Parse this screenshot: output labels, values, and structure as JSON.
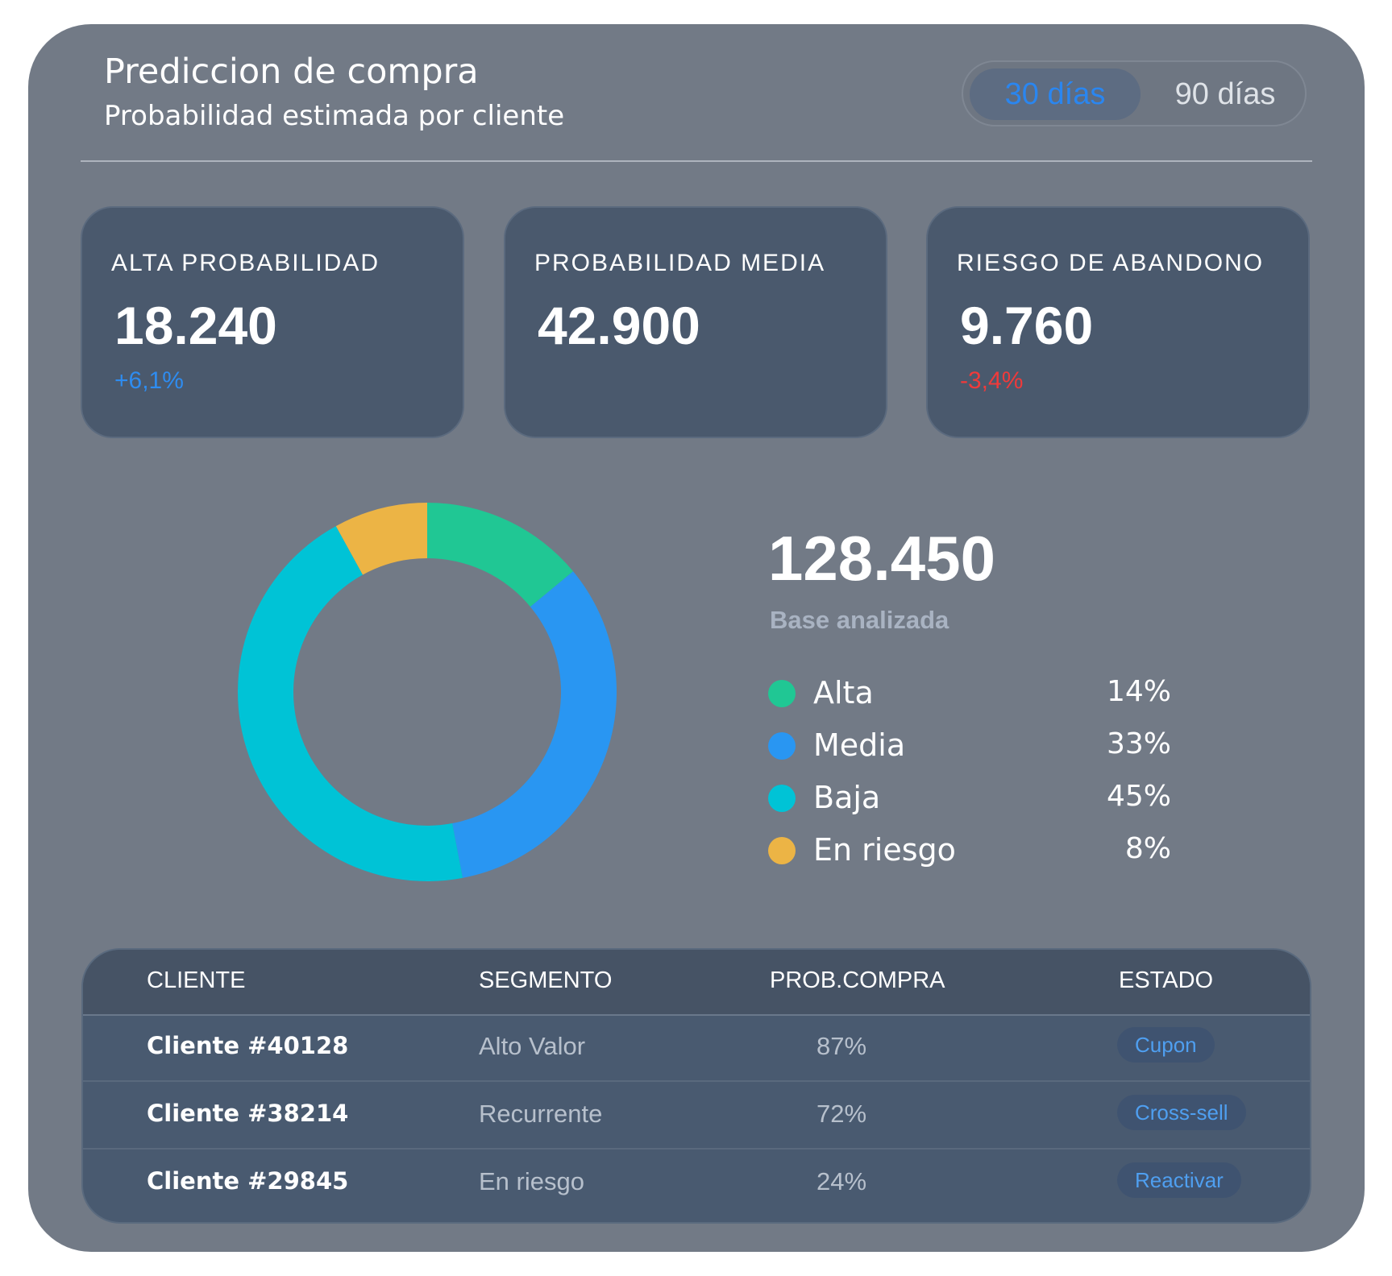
{
  "header": {
    "title": "Prediccion de compra",
    "subtitle": "Probabilidad estimada por cliente",
    "toggle": {
      "options": [
        "30 días",
        "90 días"
      ],
      "selected": "30 días"
    }
  },
  "kpis": [
    {
      "label": "ALTA PROBABILIDAD",
      "value": "18.240",
      "delta": "+6,1%"
    },
    {
      "label": "PROBABILIDAD MEDIA",
      "value": "42.900",
      "delta": ""
    },
    {
      "label": "RIESGO DE ABANDONO",
      "value": "9.760",
      "delta": "-3,4%"
    }
  ],
  "summary": {
    "total": "128.450",
    "total_label": "Base analizada"
  },
  "chart_data": {
    "type": "pie",
    "donut": true,
    "categories": [
      "Alta",
      "Media",
      "Baja",
      "En riesgo"
    ],
    "values": [
      14,
      33,
      45,
      8
    ],
    "value_labels": [
      "14%",
      "33%",
      "45%",
      "8%"
    ],
    "colors": [
      "#20c794",
      "#2996f2",
      "#00c3d6",
      "#ecb445"
    ],
    "legend": "right"
  },
  "table": {
    "headers": [
      "CLIENTE",
      "SEGMENTO",
      "PROB.COMPRA",
      "ESTADO"
    ],
    "rows": [
      {
        "cliente": "Cliente #40128",
        "segmento": "Alto Valor",
        "prob": "87%",
        "estado": "Cupon"
      },
      {
        "cliente": "Cliente #38214",
        "segmento": "Recurrente",
        "prob": "72%",
        "estado": "Cross-sell"
      },
      {
        "cliente": "Cliente #29845",
        "segmento": "En riesgo",
        "prob": "24%",
        "estado": "Reactivar"
      }
    ]
  },
  "colors": {
    "panel": "#727a86",
    "card": "#4a596d",
    "positive": "#2e8cf0",
    "negative": "#f03a3a"
  }
}
